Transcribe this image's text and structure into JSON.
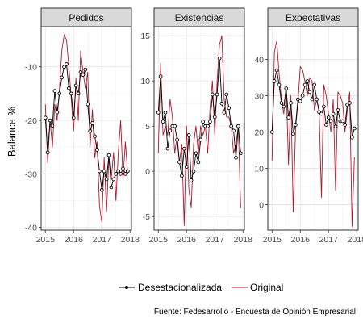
{
  "chart_data": {
    "type": "line",
    "ylabel": "Balance %",
    "caption": "Fuente: Fedesarrollo - Encuesta de Opinión Empresarial",
    "legend": [
      {
        "label": "Desestacionalizada",
        "color": "#000000",
        "marker": "point"
      },
      {
        "label": "Original",
        "color": "#b2182b",
        "marker": "none"
      }
    ],
    "x_ticks": [
      2015,
      2016,
      2017,
      2018
    ],
    "xlim": [
      2014.85,
      2018.05
    ],
    "grid": true,
    "panels": [
      {
        "title": "Pedidos",
        "ylim": [
          -40.5,
          -2.5
        ],
        "y_ticks": [
          -40,
          -30,
          -20,
          -10
        ],
        "x": [
          2015.0,
          2015.083,
          2015.167,
          2015.25,
          2015.333,
          2015.417,
          2015.5,
          2015.583,
          2015.667,
          2015.75,
          2015.833,
          2015.917,
          2016.0,
          2016.083,
          2016.167,
          2016.25,
          2016.333,
          2016.417,
          2016.5,
          2016.583,
          2016.667,
          2016.75,
          2016.833,
          2016.917,
          2017.0,
          2017.083,
          2017.167,
          2017.25,
          2017.333,
          2017.417,
          2017.5,
          2017.583,
          2017.667,
          2017.75,
          2017.833,
          2017.917
        ],
        "series": [
          {
            "name": "Desestacionalizada",
            "values": [
              -19.5,
              -26,
              -20,
              -21,
              -14.5,
              -18.5,
              -15,
              -12,
              -10,
              -9.5,
              -14,
              -15,
              -19.5,
              -13.5,
              -15,
              -11,
              -11.5,
              -10.5,
              -17,
              -22,
              -20.5,
              -23,
              -25.5,
              -29.5,
              -33,
              -29.5,
              -31,
              -26.5,
              -32.5,
              -31,
              -30,
              -29.5,
              -30,
              -29,
              -30,
              -29.5
            ]
          },
          {
            "name": "Original",
            "values": [
              -17,
              -28,
              -20,
              -25,
              -17,
              -20,
              -14,
              -7,
              -4,
              -5,
              -10,
              -16,
              -22,
              -12,
              -20,
              -7,
              -11,
              -14,
              -11,
              -25,
              -18,
              -27,
              -24,
              -36,
              -39,
              -27,
              -37,
              -27,
              -31,
              -26,
              -35,
              -26,
              -20,
              -31,
              -24,
              -30
            ]
          }
        ]
      },
      {
        "title": "Existencias",
        "ylim": [
          -6.5,
          16
        ],
        "y_ticks": [
          -5,
          0,
          5,
          10,
          15
        ],
        "x": [
          2015.0,
          2015.083,
          2015.167,
          2015.25,
          2015.333,
          2015.417,
          2015.5,
          2015.583,
          2015.667,
          2015.75,
          2015.833,
          2015.917,
          2016.0,
          2016.083,
          2016.167,
          2016.25,
          2016.333,
          2016.417,
          2016.5,
          2016.583,
          2016.667,
          2016.75,
          2016.833,
          2016.917,
          2017.0,
          2017.083,
          2017.167,
          2017.25,
          2017.333,
          2017.417,
          2017.5,
          2017.583,
          2017.667,
          2017.75,
          2017.833,
          2017.917
        ],
        "series": [
          {
            "name": "Desestacionalizada",
            "values": [
              6.5,
              10.5,
              5.5,
              6.5,
              2.5,
              4.5,
              5,
              5,
              3.5,
              1,
              -0.5,
              2.5,
              0.5,
              4,
              -1,
              0,
              2,
              1,
              3.5,
              5.5,
              5,
              5,
              5.5,
              8.5,
              6,
              8.5,
              12.5,
              7.5,
              6.5,
              8.5,
              7,
              5,
              4.5,
              1.5,
              5,
              2
            ]
          },
          {
            "name": "Original",
            "values": [
              2,
              12,
              4,
              5,
              4,
              8,
              6,
              2,
              4,
              1,
              3,
              -6,
              5,
              -2,
              -4,
              3,
              5,
              2,
              5,
              4,
              5,
              2,
              7,
              10,
              4,
              10,
              14,
              15,
              8,
              6,
              6,
              5,
              2,
              3,
              5,
              -4
            ]
          }
        ]
      },
      {
        "title": "Expectativas",
        "ylim": [
          -7,
          49
        ],
        "y_ticks": [
          0,
          10,
          20,
          30,
          40
        ],
        "x": [
          2015.0,
          2015.083,
          2015.167,
          2015.25,
          2015.333,
          2015.417,
          2015.5,
          2015.583,
          2015.667,
          2015.75,
          2015.833,
          2015.917,
          2016.0,
          2016.083,
          2016.167,
          2016.25,
          2016.333,
          2016.417,
          2016.5,
          2016.583,
          2016.667,
          2016.75,
          2016.833,
          2016.917,
          2017.0,
          2017.083,
          2017.167,
          2017.25,
          2017.333,
          2017.417,
          2017.5,
          2017.583,
          2017.667,
          2017.75,
          2017.833,
          2017.917
        ],
        "series": [
          {
            "name": "Desestacionalizada",
            "values": [
              20,
              34,
              37,
              33,
              28,
              27,
              32,
              24,
              28,
              19.5,
              22,
              29,
              28.5,
              30,
              33,
              34,
              31,
              29,
              33,
              29,
              25.5,
              25,
              27,
              22,
              24,
              23,
              25,
              21.5,
              26,
              23,
              23,
              22,
              27.5,
              28,
              18.5,
              21
            ]
          },
          {
            "name": "Original",
            "values": [
              12,
              42,
              45,
              36,
              29,
              25,
              33,
              11,
              30,
              -2,
              21,
              28,
              38,
              37,
              34,
              30,
              35,
              34,
              26,
              29,
              26,
              2,
              33,
              30,
              25,
              20,
              29,
              4,
              31,
              30,
              28,
              20,
              26,
              31,
              -6,
              13
            ]
          }
        ]
      }
    ]
  }
}
